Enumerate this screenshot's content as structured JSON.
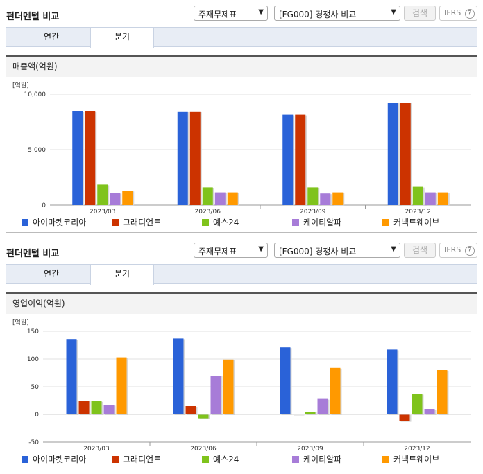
{
  "panels": [
    {
      "header": {
        "title": "펀더멘털 비교",
        "select_statement": "주재무제표",
        "select_compare": "[FG000] 경쟁사 비교",
        "search_label": "검색",
        "ifrs_label": "IFRS",
        "help_icon_text": "?"
      },
      "tabs": [
        {
          "label": "연간"
        },
        {
          "label": "분기"
        }
      ],
      "active_tab": 1,
      "section_title": "매출액(억원)",
      "chart_data": {
        "type": "bar",
        "unit_label": "[억원]",
        "ylim": [
          0,
          10000
        ],
        "yticks": [
          0,
          5000,
          10000
        ],
        "ytick_labels": [
          "0",
          "5,000",
          "10,000"
        ],
        "grid": true,
        "categories": [
          "2023/03",
          "2023/06",
          "2023/09",
          "2023/12"
        ],
        "series": [
          {
            "name": "아이마켓코리아",
            "color": "#2a62d8",
            "values": [
              8500,
              8450,
              8150,
              9250
            ]
          },
          {
            "name": "그래디언트",
            "color": "#cc3300",
            "values": [
              8500,
              8450,
              8150,
              9250
            ]
          },
          {
            "name": "예스24",
            "color": "#7fc31c",
            "values": [
              1850,
              1600,
              1600,
              1650
            ]
          },
          {
            "name": "케이티알파",
            "color": "#a77cd8",
            "values": [
              1100,
              1150,
              1050,
              1150
            ]
          },
          {
            "name": "커넥트웨이브",
            "color": "#ff9900",
            "values": [
              1300,
              1150,
              1150,
              1150
            ]
          }
        ],
        "legend_position": "bottom"
      }
    },
    {
      "header": {
        "title": "펀더멘털 비교",
        "select_statement": "주재무제표",
        "select_compare": "[FG000] 경쟁사 비교",
        "search_label": "검색",
        "ifrs_label": "IFRS",
        "help_icon_text": "?"
      },
      "tabs": [
        {
          "label": "연간"
        },
        {
          "label": "분기"
        }
      ],
      "active_tab": 1,
      "section_title": "영업이익(억원)",
      "chart_data": {
        "type": "bar",
        "unit_label": "[억원]",
        "ylim": [
          -50,
          150
        ],
        "yticks": [
          -50,
          0,
          50,
          100,
          150
        ],
        "ytick_labels": [
          "-50",
          "0",
          "50",
          "100",
          "150"
        ],
        "grid": true,
        "categories": [
          "2023/03",
          "2023/06",
          "2023/09",
          "2023/12"
        ],
        "series": [
          {
            "name": "아이마켓코리아",
            "color": "#2a62d8",
            "values": [
              136,
              137,
              121,
              117
            ]
          },
          {
            "name": "그래디언트",
            "color": "#cc3300",
            "values": [
              25,
              15,
              0,
              -12
            ]
          },
          {
            "name": "예스24",
            "color": "#7fc31c",
            "values": [
              24,
              -7,
              5,
              37
            ]
          },
          {
            "name": "케이티알파",
            "color": "#a77cd8",
            "values": [
              17,
              70,
              28,
              10
            ]
          },
          {
            "name": "커넥트웨이브",
            "color": "#ff9900",
            "values": [
              103,
              99,
              84,
              80
            ]
          }
        ],
        "legend_position": "bottom"
      }
    }
  ]
}
